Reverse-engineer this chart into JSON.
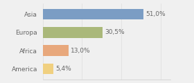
{
  "categories": [
    "Asia",
    "Europa",
    "Africa",
    "America"
  ],
  "values": [
    51.0,
    30.5,
    13.0,
    5.4
  ],
  "labels": [
    "51,0%",
    "30,5%",
    "13,0%",
    "5,4%"
  ],
  "bar_colors": [
    "#7b9dc4",
    "#aab87a",
    "#e8a87c",
    "#f0d080"
  ],
  "background_color": "#f0f0f0",
  "xlim": [
    0,
    65
  ],
  "bar_height": 0.6,
  "label_fontsize": 6.5,
  "category_fontsize": 6.5,
  "text_color": "#666666"
}
